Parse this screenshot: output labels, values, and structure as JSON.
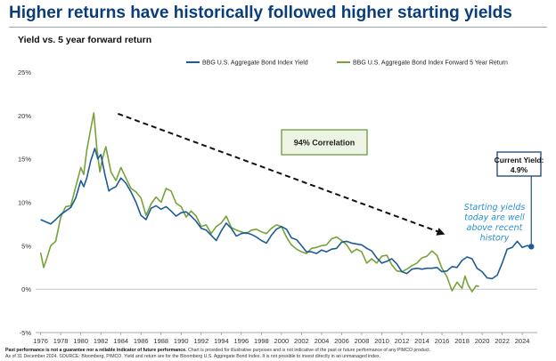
{
  "page": {
    "title": "Higher returns have historically followed higher starting yields",
    "subtitle": "Yield vs. 5 year forward return",
    "footnote_bold": "Past performance is not a guarantee nor a reliable indicator of future performance.",
    "footnote_rest": " Chart is provided for illustrative purposes and is not indicative of the past or future performance of any PIMCO product.",
    "footnote_line2": "As of 31 December 2024. SOURCE: Bloomberg, PIMCO. Yield and return are for the Bloomberg U.S. Aggregate Bond Index. It is not possible to invest directly in an unmanaged index."
  },
  "colors": {
    "yield": "#1b5c96",
    "return": "#77a239",
    "callout_border": "#6a9a3a",
    "current_border": "#2a4f7a",
    "annotation": "#2a8fd0"
  },
  "chart_data": {
    "type": "line",
    "xlim": [
      1975.5,
      2025.5
    ],
    "ylim": [
      -5,
      25
    ],
    "yticks": [
      -5,
      0,
      5,
      10,
      15,
      20,
      25
    ],
    "ytick_labels": [
      "-5%",
      "0%",
      "5%",
      "10%",
      "15%",
      "20%",
      "25%"
    ],
    "xticks": [
      1976,
      1978,
      1980,
      1982,
      1984,
      1986,
      1988,
      1990,
      1992,
      1994,
      1996,
      1998,
      2000,
      2002,
      2004,
      2006,
      2008,
      2010,
      2012,
      2014,
      2016,
      2018,
      2020,
      2022,
      2024
    ],
    "xtick_labels": [
      "1976",
      "1978",
      "1980",
      "1982",
      "1984",
      "1986",
      "1988",
      "1990",
      "1992",
      "1994",
      "1996",
      "1998",
      "2000",
      "2002",
      "2004",
      "2006",
      "2008",
      "2010",
      "2012",
      "2014",
      "2016",
      "2018",
      "2020",
      "2022",
      "2024"
    ],
    "grid": false,
    "legend_position": "top-right",
    "series": [
      {
        "name": "BBG U.S. Aggregate Bond Index Yield",
        "x": [
          1976,
          1977,
          1977.5,
          1978,
          1978.5,
          1979,
          1979.5,
          1980,
          1980.3,
          1980.6,
          1981,
          1981.4,
          1981.7,
          1982,
          1982.4,
          1982.8,
          1983,
          1983.5,
          1984,
          1984.5,
          1985,
          1985.5,
          1986,
          1986.5,
          1987,
          1987.5,
          1988,
          1988.5,
          1989,
          1989.5,
          1990,
          1990.5,
          1991,
          1991.5,
          1992,
          1992.5,
          1993,
          1993.5,
          1994,
          1994.5,
          1995,
          1995.5,
          1996,
          1996.5,
          1997,
          1997.5,
          1998,
          1998.5,
          1999,
          1999.5,
          2000,
          2000.5,
          2001,
          2001.5,
          2002,
          2002.5,
          2003,
          2003.5,
          2004,
          2004.5,
          2005,
          2005.5,
          2006,
          2006.5,
          2007,
          2007.5,
          2008,
          2008.5,
          2009,
          2009.5,
          2010,
          2010.5,
          2011,
          2011.5,
          2012,
          2012.5,
          2013,
          2013.5,
          2014,
          2014.5,
          2015,
          2015.5,
          2016,
          2016.5,
          2017,
          2017.5,
          2018,
          2018.5,
          2019,
          2019.5,
          2020,
          2020.5,
          2021,
          2021.5,
          2022,
          2022.5,
          2023,
          2023.5,
          2024,
          2024.5,
          2024.9
        ],
        "values": [
          8.0,
          7.5,
          8.0,
          8.6,
          9.0,
          9.4,
          10.5,
          12.5,
          11.8,
          12.8,
          14.8,
          16.2,
          15.0,
          15.5,
          13.2,
          11.3,
          11.5,
          11.8,
          12.8,
          12.2,
          11.2,
          10.0,
          8.5,
          8.0,
          9.3,
          9.6,
          9.2,
          9.5,
          9.0,
          8.4,
          8.8,
          8.9,
          8.4,
          7.8,
          7.0,
          6.8,
          6.2,
          5.6,
          6.7,
          7.6,
          7.0,
          6.1,
          6.4,
          6.5,
          6.3,
          6.0,
          5.6,
          5.3,
          6.2,
          6.9,
          7.2,
          6.9,
          5.9,
          5.7,
          5.0,
          4.3,
          4.3,
          4.1,
          4.5,
          4.3,
          4.6,
          4.7,
          5.4,
          5.5,
          5.3,
          5.2,
          5.1,
          4.7,
          4.4,
          3.6,
          3.0,
          3.2,
          3.5,
          2.9,
          2.0,
          1.8,
          2.3,
          2.4,
          2.3,
          2.4,
          2.4,
          2.5,
          2.0,
          2.1,
          2.6,
          2.5,
          3.3,
          3.7,
          3.5,
          2.4,
          2.0,
          1.3,
          1.2,
          1.6,
          3.0,
          4.6,
          4.8,
          5.5,
          4.8,
          5.0,
          4.9
        ]
      },
      {
        "name": "BBG U.S. Aggregate Bond Index Forward 5 Year Return",
        "x": [
          1976,
          1976.3,
          1976.6,
          1977,
          1977.5,
          1978,
          1978.5,
          1979,
          1979.5,
          1980,
          1980.3,
          1980.6,
          1981,
          1981.3,
          1981.6,
          1981.9,
          1982.2,
          1982.5,
          1983,
          1983.5,
          1984,
          1984.5,
          1985,
          1985.5,
          1986,
          1986.5,
          1987,
          1987.5,
          1988,
          1988.5,
          1989,
          1989.5,
          1990,
          1990.5,
          1991,
          1991.5,
          1992,
          1992.5,
          1993,
          1993.5,
          1994,
          1994.5,
          1995,
          1995.5,
          1996,
          1996.5,
          1997,
          1997.5,
          1998,
          1998.5,
          1999,
          1999.5,
          2000,
          2000.5,
          2001,
          2001.5,
          2002,
          2002.5,
          2003,
          2003.5,
          2004,
          2004.5,
          2005,
          2005.5,
          2006,
          2006.5,
          2007,
          2007.5,
          2008,
          2008.5,
          2009,
          2009.5,
          2010,
          2010.5,
          2011,
          2011.5,
          2012,
          2012.5,
          2013,
          2013.5,
          2014,
          2014.5,
          2015,
          2015.5,
          2016,
          2016.5,
          2017,
          2017.5,
          2018,
          2018.3,
          2018.6,
          2019,
          2019.4,
          2019.7
        ],
        "values": [
          4.2,
          2.5,
          3.5,
          5.0,
          5.5,
          8.3,
          9.5,
          9.6,
          11.8,
          14.0,
          13.2,
          16.0,
          18.5,
          20.3,
          16.2,
          13.5,
          15.2,
          16.4,
          13.5,
          12.5,
          14.0,
          12.8,
          11.6,
          11.2,
          10.5,
          8.5,
          9.8,
          10.6,
          10.0,
          11.6,
          11.3,
          9.9,
          9.5,
          8.3,
          9.0,
          8.4,
          7.2,
          7.4,
          6.4,
          7.2,
          7.6,
          8.4,
          7.1,
          6.8,
          6.6,
          6.4,
          6.8,
          6.9,
          6.6,
          6.4,
          7.0,
          7.4,
          7.2,
          6.0,
          5.1,
          4.6,
          4.3,
          4.1,
          4.7,
          4.8,
          5.0,
          5.1,
          5.8,
          6.0,
          5.6,
          5.1,
          4.2,
          4.6,
          4.3,
          3.0,
          3.5,
          3.0,
          3.8,
          3.9,
          2.8,
          2.1,
          2.0,
          2.3,
          2.7,
          3.0,
          3.6,
          3.8,
          4.4,
          3.9,
          2.4,
          1.4,
          -0.2,
          0.8,
          0.1,
          1.5,
          0.5,
          -0.3,
          0.4,
          0.3
        ]
      }
    ],
    "annotations": {
      "correlation": "94% Correlation",
      "current_yield_label": "Current Yield:",
      "current_yield_value": "4.9%",
      "starting_note_1": "Starting yields",
      "starting_note_2": "today are well",
      "starting_note_3": "above recent",
      "starting_note_4": "history",
      "trend_arrow_from": [
        1983.7,
        20.2
      ],
      "trend_arrow_to": [
        2016.3,
        6.3
      ],
      "current_point": [
        2024.9,
        4.9
      ]
    }
  }
}
